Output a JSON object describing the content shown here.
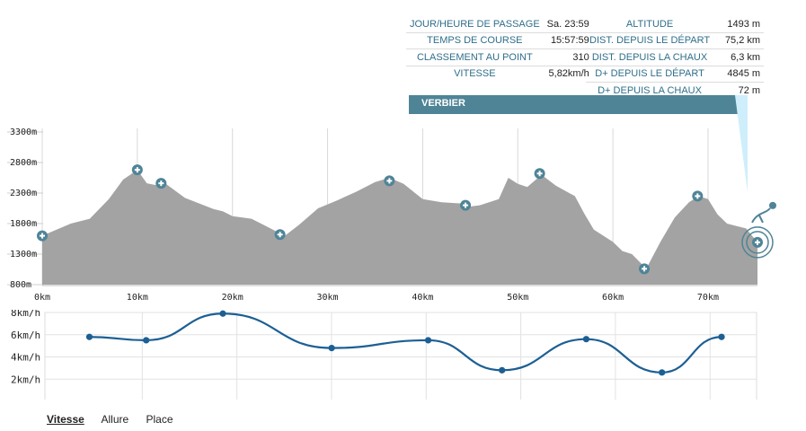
{
  "info_left": [
    {
      "label": "JOUR/HEURE DE PASSAGE",
      "value": "Sa. 23:59"
    },
    {
      "label": "TEMPS DE COURSE",
      "value": "15:57:59"
    },
    {
      "label": "CLASSEMENT AU POINT",
      "value": "310"
    },
    {
      "label": "VITESSE",
      "value": "5,82km/h"
    }
  ],
  "info_right": [
    {
      "label": "ALTITUDE",
      "value": "1493 m"
    },
    {
      "label": "DIST. DEPUIS LE DÉPART",
      "value": "75,2 km"
    },
    {
      "label": "DIST. DEPUIS LA CHAUX",
      "value": "6,3 km"
    },
    {
      "label": "D+ DEPUIS LE DÉPART",
      "value": "4845 m"
    },
    {
      "label": "D+ DEPUIS LA CHAUX",
      "value": "72 m"
    }
  ],
  "banner": "VERBIER",
  "tabs": [
    "Vitesse",
    "Allure",
    "Place"
  ],
  "colors": {
    "profile": "#a3a3a3",
    "accent": "#4f8497",
    "speed": "#1c5f94",
    "highlight": "#cfeefb"
  },
  "chart_data": [
    {
      "type": "area",
      "xlim": [
        0,
        75.2
      ],
      "ylim": [
        800,
        3300
      ],
      "x_ticks": [
        0,
        10,
        20,
        30,
        40,
        50,
        60,
        70
      ],
      "x_tick_labels": [
        "0km",
        "10km",
        "20km",
        "30km",
        "40km",
        "50km",
        "60km",
        "70km"
      ],
      "y_ticks": [
        800,
        1300,
        1800,
        2300,
        2800,
        3300
      ],
      "y_tick_labels": [
        "800m",
        "1300m",
        "1800m",
        "2300m",
        "2800m",
        "3300m"
      ],
      "grid": true,
      "profile": {
        "x": [
          0,
          1.5,
          3,
          5,
          7,
          8.5,
          10,
          11,
          12,
          13,
          15,
          17,
          18,
          19,
          20,
          22,
          23,
          24,
          25.5,
          27,
          29,
          31,
          32,
          33,
          35,
          36.5,
          38,
          40,
          42,
          44,
          45,
          46,
          48,
          49,
          50,
          51,
          52.5,
          54,
          56,
          57,
          58,
          60,
          61,
          62,
          63.5,
          65,
          66.5,
          68,
          69,
          70,
          71,
          72,
          73,
          74,
          75.2
        ],
        "y": [
          1600,
          1700,
          1800,
          1880,
          2200,
          2520,
          2680,
          2460,
          2430,
          2450,
          2220,
          2100,
          2040,
          2000,
          1920,
          1880,
          1800,
          1720,
          1600,
          1780,
          2050,
          2180,
          2250,
          2320,
          2480,
          2550,
          2450,
          2200,
          2150,
          2130,
          2080,
          2100,
          2200,
          2550,
          2450,
          2400,
          2600,
          2420,
          2250,
          1960,
          1700,
          1500,
          1350,
          1300,
          1060,
          1500,
          1900,
          2150,
          2250,
          2200,
          1950,
          1800,
          1760,
          1720,
          1493
        ]
      },
      "checkpoints": [
        {
          "x": 0,
          "y": 1600
        },
        {
          "x": 10,
          "y": 2680
        },
        {
          "x": 12.5,
          "y": 2460
        },
        {
          "x": 25,
          "y": 1620
        },
        {
          "x": 36.5,
          "y": 2500
        },
        {
          "x": 44.5,
          "y": 2100
        },
        {
          "x": 52.3,
          "y": 2620
        },
        {
          "x": 63.3,
          "y": 1060
        },
        {
          "x": 68.9,
          "y": 2250
        },
        {
          "x": 75.2,
          "y": 1493
        }
      ]
    },
    {
      "type": "line",
      "xlim": [
        0,
        75.2
      ],
      "ylim": [
        0,
        8
      ],
      "y_ticks": [
        2,
        4,
        6,
        8
      ],
      "y_tick_labels": [
        "2km/h",
        "4km/h",
        "6km/h",
        "8km/h"
      ],
      "grid": true,
      "series": [
        {
          "x": [
            4.7,
            10.7,
            18.8,
            30.3,
            40.5,
            48.3,
            57.2,
            65.2,
            71.5
          ],
          "values": [
            5.8,
            5.5,
            7.9,
            4.8,
            5.5,
            2.8,
            5.6,
            2.6,
            5.8
          ]
        }
      ]
    }
  ]
}
